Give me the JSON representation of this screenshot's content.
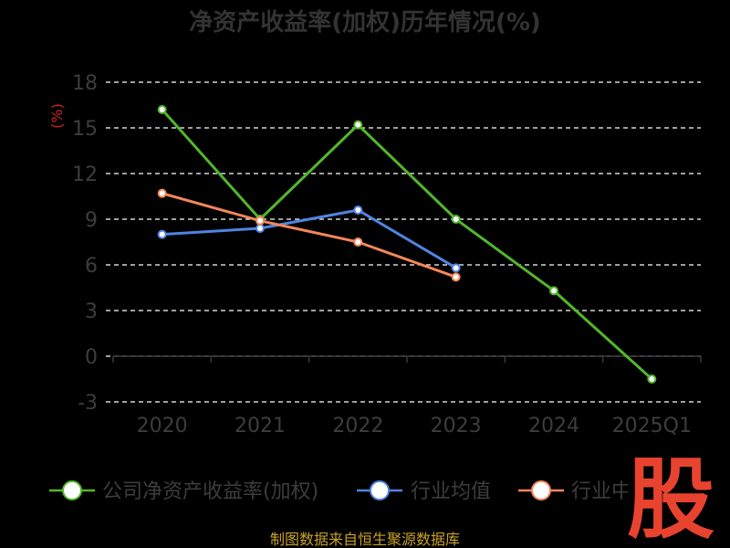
{
  "chart_data": {
    "type": "line",
    "title": "净资产收益率(加权)历年情况(%)",
    "ylabel": "(%)",
    "categories": [
      "2020",
      "2021",
      "2022",
      "2023",
      "2024",
      "2025Q1"
    ],
    "yticks": [
      "18",
      "15",
      "12",
      "9",
      "6",
      "3",
      "0",
      "-3"
    ],
    "ylim": [
      -3,
      18
    ],
    "grid": true,
    "legend_position": "bottom",
    "series": [
      {
        "name": "公司净资产收益率(加权)",
        "color": "#52b72a",
        "values": [
          16.2,
          9.0,
          15.2,
          9.0,
          4.3,
          -1.5
        ]
      },
      {
        "name": "行业均值",
        "color": "#5084e0",
        "values": [
          8.0,
          8.4,
          9.6,
          5.8,
          null,
          null
        ]
      },
      {
        "name": "行业中位数",
        "color": "#f4875a",
        "values": [
          10.7,
          8.9,
          7.5,
          5.2,
          null,
          null
        ]
      }
    ]
  },
  "footer": {
    "source": "制图数据来自恒生聚源数据库"
  },
  "logo": {
    "text": "股"
  }
}
